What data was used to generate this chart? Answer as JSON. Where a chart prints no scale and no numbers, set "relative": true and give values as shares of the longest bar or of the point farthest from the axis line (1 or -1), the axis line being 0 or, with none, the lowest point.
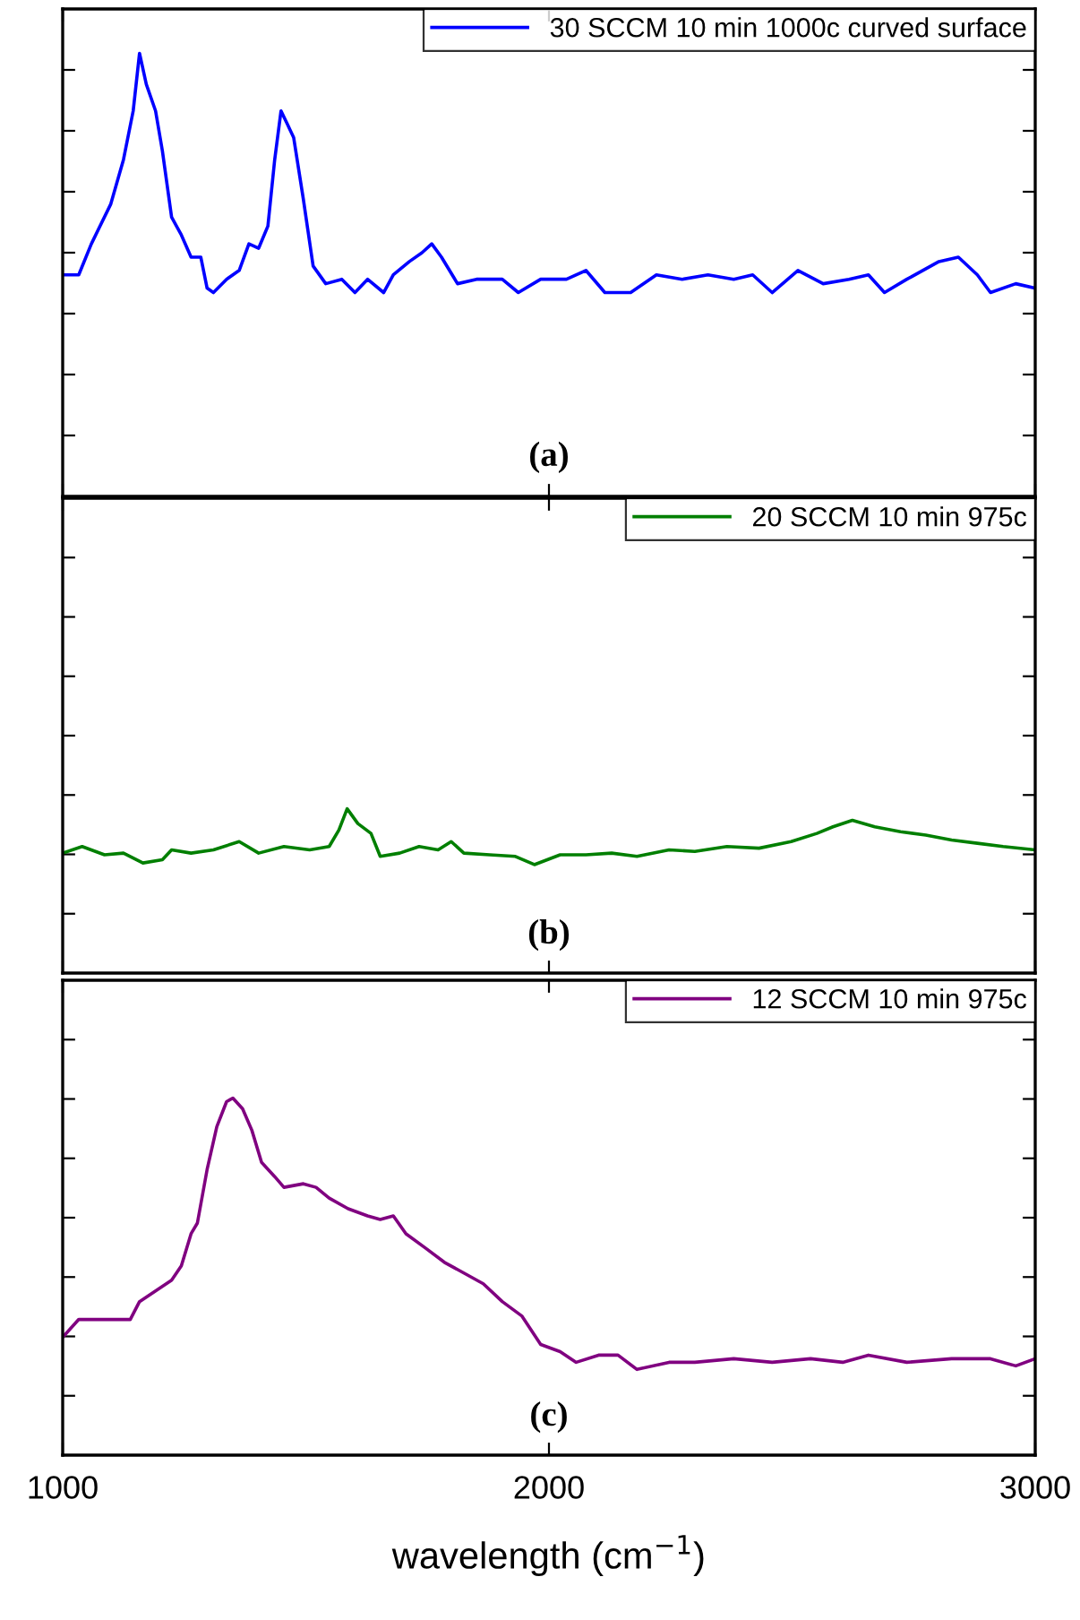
{
  "chart_data": [
    {
      "type": "line",
      "relative": true,
      "xlim": [
        1000,
        3000
      ],
      "xticks": [
        1000,
        2000,
        3000
      ],
      "tick_labels": false,
      "legend": "top right",
      "annotations": [
        "(a)"
      ],
      "series": [
        {
          "name": "30 SCCM 10 min 1000c curved surface",
          "color": "#0000ff",
          "x": [
            1000,
            1033,
            1059,
            1099,
            1125,
            1145,
            1158,
            1172,
            1191,
            1205,
            1224,
            1244,
            1264,
            1284,
            1297,
            1310,
            1337,
            1363,
            1383,
            1403,
            1422,
            1436,
            1449,
            1462,
            1475,
            1495,
            1515,
            1541,
            1574,
            1601,
            1627,
            1660,
            1680,
            1713,
            1739,
            1759,
            1779,
            1812,
            1851,
            1904,
            1937,
            1983,
            2036,
            2076,
            2115,
            2168,
            2221,
            2274,
            2327,
            2380,
            2419,
            2459,
            2512,
            2564,
            2617,
            2657,
            2690,
            2736,
            2802,
            2842,
            2881,
            2908,
            2960,
            3000
          ],
          "values": [
            0.5,
            0.5,
            0.57,
            0.66,
            0.76,
            0.87,
            1,
            0.93,
            0.87,
            0.78,
            0.63,
            0.59,
            0.54,
            0.54,
            0.47,
            0.46,
            0.49,
            0.51,
            0.57,
            0.56,
            0.61,
            0.76,
            0.87,
            0.84,
            0.81,
            0.67,
            0.52,
            0.48,
            0.49,
            0.46,
            0.49,
            0.46,
            0.5,
            0.53,
            0.55,
            0.57,
            0.54,
            0.48,
            0.49,
            0.49,
            0.46,
            0.49,
            0.49,
            0.51,
            0.46,
            0.46,
            0.5,
            0.49,
            0.5,
            0.49,
            0.5,
            0.46,
            0.51,
            0.48,
            0.49,
            0.5,
            0.46,
            0.49,
            0.53,
            0.54,
            0.5,
            0.46,
            0.48,
            0.47
          ]
        }
      ]
    },
    {
      "type": "line",
      "relative": true,
      "xlim": [
        1000,
        3000
      ],
      "xticks": [
        1000,
        2000,
        3000
      ],
      "tick_labels": false,
      "legend": "top right",
      "annotations": [
        "(b)"
      ],
      "series": [
        {
          "name": "20 SCCM 10 min 975c",
          "color": "#007f00",
          "x": [
            1000,
            1040,
            1086,
            1125,
            1165,
            1205,
            1224,
            1264,
            1310,
            1363,
            1403,
            1455,
            1508,
            1548,
            1568,
            1585,
            1607,
            1634,
            1653,
            1693,
            1733,
            1772,
            1799,
            1825,
            1878,
            1931,
            1970,
            2023,
            2076,
            2129,
            2181,
            2247,
            2300,
            2366,
            2432,
            2498,
            2551,
            2584,
            2624,
            2670,
            2723,
            2775,
            2828,
            2881,
            2934,
            3000
          ],
          "values": [
            0.73,
            0.77,
            0.72,
            0.73,
            0.67,
            0.69,
            0.75,
            0.73,
            0.75,
            0.8,
            0.73,
            0.77,
            0.75,
            0.77,
            0.87,
            1,
            0.91,
            0.85,
            0.71,
            0.73,
            0.77,
            0.75,
            0.8,
            0.73,
            0.72,
            0.71,
            0.66,
            0.72,
            0.72,
            0.73,
            0.71,
            0.75,
            0.74,
            0.77,
            0.76,
            0.8,
            0.85,
            0.89,
            0.93,
            0.89,
            0.86,
            0.84,
            0.81,
            0.79,
            0.77,
            0.75
          ]
        }
      ]
    },
    {
      "type": "line",
      "relative": true,
      "xlim": [
        1000,
        3000
      ],
      "xticks": [
        1000,
        2000,
        3000
      ],
      "tick_labels": "x",
      "legend": "top right",
      "xlabel": "wavelength (cm$^{−1}$)",
      "annotations": [
        "(c)"
      ],
      "series": [
        {
          "name": "12 SCCM 10 min 975c",
          "color": "#800080",
          "x": [
            1000,
            1033,
            1073,
            1112,
            1139,
            1158,
            1191,
            1224,
            1244,
            1264,
            1277,
            1297,
            1317,
            1337,
            1350,
            1370,
            1389,
            1409,
            1436,
            1455,
            1495,
            1521,
            1548,
            1587,
            1627,
            1653,
            1680,
            1706,
            1746,
            1785,
            1825,
            1865,
            1904,
            1944,
            1983,
            2023,
            2056,
            2102,
            2142,
            2181,
            2247,
            2300,
            2380,
            2459,
            2538,
            2604,
            2657,
            2736,
            2828,
            2908,
            2960,
            3000
          ],
          "values": [
            0.33,
            0.38,
            0.38,
            0.38,
            0.38,
            0.43,
            0.46,
            0.49,
            0.53,
            0.62,
            0.65,
            0.8,
            0.92,
            0.99,
            1,
            0.97,
            0.91,
            0.82,
            0.78,
            0.75,
            0.76,
            0.75,
            0.72,
            0.69,
            0.67,
            0.66,
            0.67,
            0.62,
            0.58,
            0.54,
            0.51,
            0.48,
            0.43,
            0.39,
            0.31,
            0.29,
            0.26,
            0.28,
            0.28,
            0.24,
            0.26,
            0.26,
            0.27,
            0.26,
            0.27,
            0.26,
            0.28,
            0.26,
            0.27,
            0.27,
            0.25,
            0.27
          ]
        }
      ]
    }
  ]
}
